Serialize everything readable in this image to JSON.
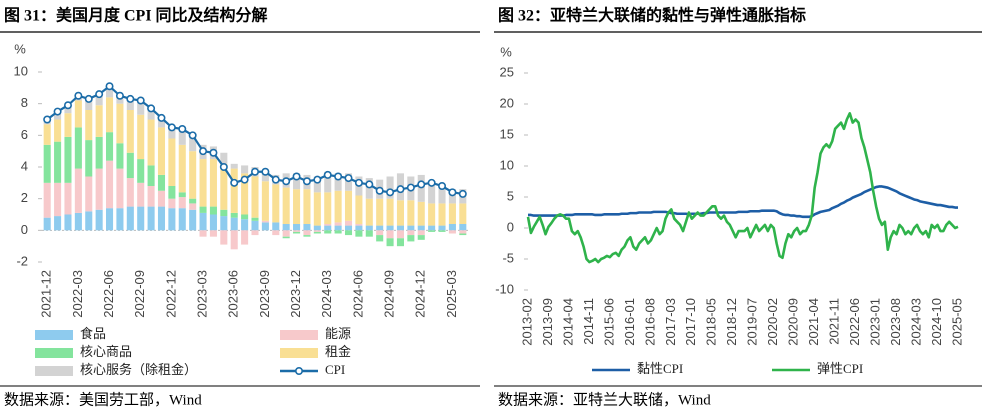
{
  "chart_data": [
    {
      "type": "bar",
      "stacked": true,
      "title": "图 31：美国月度 CPI 同比及结构分解",
      "y_label": "%",
      "source": "数据来源：美国劳工部，Wind",
      "categories": [
        "2021-12",
        null,
        null,
        "2022-03",
        null,
        null,
        "2022-06",
        null,
        null,
        "2022-09",
        null,
        null,
        "2022-12",
        null,
        null,
        "2023-03",
        null,
        null,
        "2023-06",
        null,
        null,
        "2023-09",
        null,
        null,
        "2023-12",
        null,
        null,
        "2024-03",
        null,
        null,
        "2024-06",
        null,
        null,
        "2024-09",
        null,
        null,
        "2024-12",
        null,
        null,
        "2025-03",
        null
      ],
      "ylim": [
        -2,
        10
      ],
      "yticks": [
        -2,
        0,
        2,
        4,
        6,
        8,
        10
      ],
      "series": [
        {
          "name": "食品",
          "color": "#8ecbee",
          "values": [
            0.8,
            0.9,
            1.0,
            1.1,
            1.2,
            1.3,
            1.4,
            1.4,
            1.5,
            1.5,
            1.5,
            1.5,
            1.4,
            1.4,
            1.3,
            1.1,
            1.0,
            0.9,
            0.8,
            0.7,
            0.6,
            0.5,
            0.5,
            0.4,
            0.4,
            0.4,
            0.3,
            0.3,
            0.3,
            0.3,
            0.3,
            0.3,
            0.3,
            0.3,
            0.3,
            0.3,
            0.3,
            0.3,
            0.3,
            0.4,
            0.4
          ]
        },
        {
          "name": "能源",
          "color": "#f7c9cb",
          "values": [
            2.2,
            2.1,
            2.0,
            2.8,
            2.2,
            2.6,
            3.0,
            2.5,
            1.8,
            1.5,
            1.3,
            1.0,
            0.6,
            0.7,
            0.4,
            -0.4,
            -0.4,
            -0.9,
            -1.2,
            -0.9,
            -0.3,
            0.1,
            -0.3,
            -0.4,
            -0.1,
            -0.3,
            -0.1,
            0.1,
            0.2,
            0.3,
            0.1,
            0,
            -0.3,
            -0.5,
            -0.5,
            -0.3,
            -0.3,
            0,
            0,
            -0.2,
            -0.2
          ]
        },
        {
          "name": "核心商品",
          "color": "#84e49d",
          "values": [
            2.4,
            2.6,
            2.9,
            2.6,
            2.3,
            2.0,
            1.8,
            1.6,
            1.6,
            1.5,
            1.3,
            1.0,
            0.8,
            0.3,
            0.3,
            0.4,
            0.5,
            0.4,
            0.3,
            0.3,
            0.2,
            0,
            0,
            -0.1,
            -0.1,
            -0.1,
            -0.1,
            -0.2,
            -0.2,
            -0.3,
            -0.4,
            -0.4,
            -0.4,
            -0.5,
            -0.5,
            -0.4,
            -0.3,
            -0.1,
            -0.1,
            0,
            -0.1
          ]
        },
        {
          "name": "租金",
          "color": "#f9df94",
          "values": [
            1.3,
            1.4,
            1.5,
            1.7,
            1.9,
            2.0,
            2.2,
            2.5,
            2.7,
            2.8,
            2.9,
            3.0,
            3.0,
            3.0,
            3.0,
            3.0,
            3.0,
            2.9,
            2.8,
            2.6,
            2.6,
            2.5,
            2.4,
            2.3,
            2.2,
            2.2,
            2.1,
            2.0,
            2.0,
            1.9,
            1.8,
            1.7,
            1.7,
            1.7,
            1.6,
            1.6,
            1.5,
            1.4,
            1.4,
            1.3,
            1.3
          ]
        },
        {
          "name": "核心服务（除租金）",
          "color": "#d3d3d3",
          "values": [
            0.3,
            0.5,
            0.5,
            0.3,
            0.7,
            0.7,
            0.7,
            0.5,
            0.7,
            0.9,
            0.7,
            0.6,
            0.7,
            1.0,
            1.0,
            0.9,
            0.8,
            0.7,
            0.3,
            0.5,
            0.6,
            0.6,
            0.6,
            0.9,
            1.0,
            0.9,
            1.0,
            1.3,
            1.1,
            1.1,
            1.2,
            1.3,
            1.2,
            1.4,
            1.7,
            1.5,
            1.7,
            1.4,
            1.2,
            0.9,
            0.9
          ]
        },
        {
          "name": "CPI",
          "type": "line",
          "color": "#1b6ca8",
          "values": [
            7.0,
            7.5,
            7.9,
            8.5,
            8.3,
            8.6,
            9.1,
            8.5,
            8.3,
            8.2,
            7.7,
            7.1,
            6.5,
            6.4,
            6.0,
            5.0,
            4.9,
            4.0,
            3.0,
            3.2,
            3.7,
            3.7,
            3.2,
            3.1,
            3.4,
            3.1,
            3.2,
            3.5,
            3.4,
            3.3,
            3.0,
            2.9,
            2.5,
            2.4,
            2.6,
            2.7,
            2.9,
            3.0,
            2.8,
            2.4,
            2.3
          ]
        }
      ]
    },
    {
      "type": "line",
      "title": "图 32：亚特兰大联储的黏性与弹性通胀指标",
      "y_label": "%",
      "source": "数据来源：亚特兰大联储，Wind",
      "categories": [
        "2013-02",
        null,
        null,
        null,
        null,
        null,
        null,
        "2013-09",
        null,
        null,
        null,
        null,
        null,
        null,
        "2014-04",
        null,
        null,
        null,
        null,
        null,
        null,
        "2014-11",
        null,
        null,
        null,
        null,
        null,
        null,
        "2015-06",
        null,
        null,
        null,
        null,
        null,
        null,
        "2016-01",
        null,
        null,
        null,
        null,
        null,
        null,
        "2016-08",
        null,
        null,
        null,
        null,
        null,
        null,
        "2017-03",
        null,
        null,
        null,
        null,
        null,
        null,
        "2017-10",
        null,
        null,
        null,
        null,
        null,
        null,
        "2018-05",
        null,
        null,
        null,
        null,
        null,
        null,
        "2018-12",
        null,
        null,
        null,
        null,
        null,
        null,
        "2019-07",
        null,
        null,
        null,
        null,
        null,
        null,
        "2020-02",
        null,
        null,
        null,
        null,
        null,
        null,
        "2020-09",
        null,
        null,
        null,
        null,
        null,
        null,
        "2021-04",
        null,
        null,
        null,
        null,
        null,
        null,
        "2021-11",
        null,
        null,
        null,
        null,
        null,
        null,
        "2022-06",
        null,
        null,
        null,
        null,
        null,
        null,
        "2023-01",
        null,
        null,
        null,
        null,
        null,
        null,
        "2023-08",
        null,
        null,
        null,
        null,
        null,
        null,
        "2024-03",
        null,
        null,
        null,
        null,
        null,
        null,
        "2024-10",
        null,
        null,
        null,
        null,
        null,
        null,
        "2025-05"
      ],
      "ylim": [
        -10,
        25
      ],
      "yticks": [
        -10,
        -5,
        0,
        5,
        10,
        15,
        20,
        25
      ],
      "series": [
        {
          "name": "黏性CPI",
          "color": "#1d5ea6",
          "values": [
            2.1,
            2.1,
            2.0,
            2.0,
            2.0,
            2.0,
            2.0,
            2.0,
            2.0,
            2.0,
            2.0,
            2.0,
            2.0,
            2.1,
            2.1,
            2.1,
            2.2,
            2.2,
            2.2,
            2.2,
            2.2,
            2.2,
            2.2,
            2.1,
            2.1,
            2.1,
            2.2,
            2.2,
            2.2,
            2.2,
            2.2,
            2.2,
            2.3,
            2.3,
            2.3,
            2.4,
            2.4,
            2.4,
            2.5,
            2.5,
            2.5,
            2.5,
            2.5,
            2.6,
            2.6,
            2.6,
            2.6,
            2.6,
            2.5,
            2.4,
            2.4,
            2.3,
            2.3,
            2.3,
            2.3,
            2.2,
            2.3,
            2.3,
            2.3,
            2.3,
            2.4,
            2.4,
            2.5,
            2.5,
            2.5,
            2.5,
            2.5,
            2.5,
            2.5,
            2.5,
            2.5,
            2.5,
            2.6,
            2.6,
            2.6,
            2.6,
            2.7,
            2.7,
            2.7,
            2.7,
            2.8,
            2.8,
            2.8,
            2.8,
            2.8,
            2.7,
            2.4,
            2.2,
            2.1,
            2.1,
            2.0,
            2.0,
            1.9,
            1.9,
            1.8,
            1.8,
            1.8,
            1.9,
            2.2,
            2.4,
            2.6,
            2.7,
            2.8,
            2.9,
            3.2,
            3.4,
            3.6,
            3.9,
            4.1,
            4.4,
            4.6,
            4.9,
            5.1,
            5.3,
            5.5,
            5.8,
            6.0,
            6.2,
            6.4,
            6.6,
            6.7,
            6.7,
            6.6,
            6.5,
            6.3,
            6.1,
            5.9,
            5.6,
            5.4,
            5.2,
            5.0,
            4.8,
            4.6,
            4.5,
            4.3,
            4.2,
            4.1,
            4.0,
            3.9,
            3.8,
            3.7,
            3.7,
            3.6,
            3.5,
            3.4,
            3.4,
            3.3,
            3.3
          ]
        },
        {
          "name": "弹性CPI",
          "color": "#2fb34b",
          "values": [
            1.8,
            -0.8,
            0.2,
            1.0,
            1.8,
            0.5,
            -1.0,
            0.2,
            0.8,
            1.5,
            2.0,
            2.2,
            2.0,
            1.5,
            1.5,
            -0.5,
            -1.0,
            -0.5,
            -1.5,
            -3.0,
            -5.0,
            -5.5,
            -5.3,
            -5.0,
            -5.5,
            -5.0,
            -4.8,
            -4.5,
            -4.7,
            -4.2,
            -4.0,
            -4.5,
            -3.5,
            -3.0,
            -2.0,
            -1.5,
            -3.0,
            -3.5,
            -2.5,
            -2.0,
            -1.5,
            -2.5,
            -2.0,
            -1.0,
            0.0,
            -1.0,
            -0.5,
            1.5,
            2.5,
            3.0,
            1.5,
            1.0,
            0.5,
            -0.5,
            1.0,
            2.5,
            1.5,
            2.0,
            2.5,
            2.0,
            2.0,
            2.5,
            3.0,
            3.5,
            3.5,
            2.0,
            1.5,
            2.0,
            1.0,
            0.5,
            -0.5,
            -1.5,
            -0.5,
            -0.5,
            -0.5,
            0.0,
            -1.5,
            -0.5,
            0.5,
            -0.5,
            0.0,
            0.5,
            -0.5,
            0.5,
            0.0,
            -2.5,
            -4.5,
            -4.8,
            -2.5,
            -1.0,
            -1.5,
            -0.5,
            0.0,
            -1.0,
            -0.5,
            -0.5,
            0.5,
            2.0,
            6.5,
            9.0,
            12.0,
            13.0,
            13.5,
            13.0,
            14.0,
            16.0,
            16.5,
            17.0,
            16.0,
            17.5,
            18.5,
            17.0,
            17.5,
            17.0,
            14.5,
            13.0,
            11.0,
            9.0,
            6.0,
            3.5,
            1.5,
            0.5,
            1.0,
            -3.5,
            -1.5,
            -0.5,
            -1.0,
            0.5,
            0.0,
            -1.0,
            -0.5,
            -1.0,
            0.0,
            0.5,
            -0.5,
            -1.0,
            -0.5,
            -1.5,
            0.5,
            0.0,
            0.5,
            -0.5,
            -0.5,
            0.5,
            1.0,
            0.5,
            0.0,
            0.2
          ]
        }
      ]
    }
  ]
}
